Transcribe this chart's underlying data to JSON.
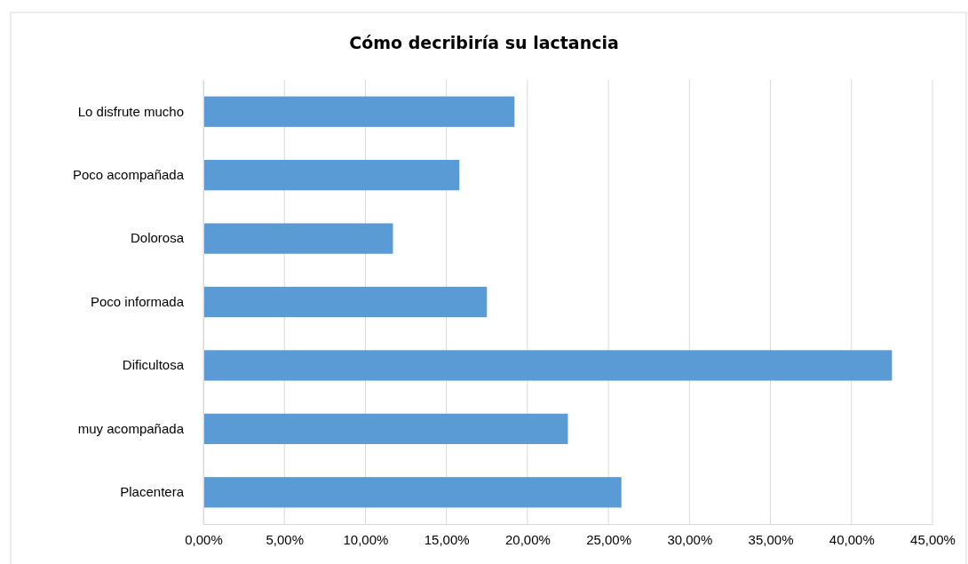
{
  "chart_data": {
    "type": "bar",
    "orientation": "horizontal",
    "title": "Cómo decribiría su lactancia",
    "categories": [
      "Lo disfrute mucho",
      "Poco acompañada",
      "Dolorosa",
      "Poco informada",
      "Dificultosa",
      "muy acompañada",
      "Placentera"
    ],
    "values": [
      19.2,
      15.8,
      11.7,
      17.5,
      42.5,
      22.5,
      25.8
    ],
    "color": "#5b9bd5",
    "xlim": [
      0,
      45
    ],
    "xticks": [
      {
        "value": 0,
        "label": "0,00%"
      },
      {
        "value": 5,
        "label": "5,00%"
      },
      {
        "value": 10,
        "label": "10,00%"
      },
      {
        "value": 15,
        "label": "15,00%"
      },
      {
        "value": 20,
        "label": "20,00%"
      },
      {
        "value": 25,
        "label": "25,00%"
      },
      {
        "value": 30,
        "label": "30,00%"
      },
      {
        "value": 35,
        "label": "35,00%"
      },
      {
        "value": 40,
        "label": "40,00%"
      },
      {
        "value": 45,
        "label": "45,00%"
      }
    ],
    "grid": "x"
  }
}
